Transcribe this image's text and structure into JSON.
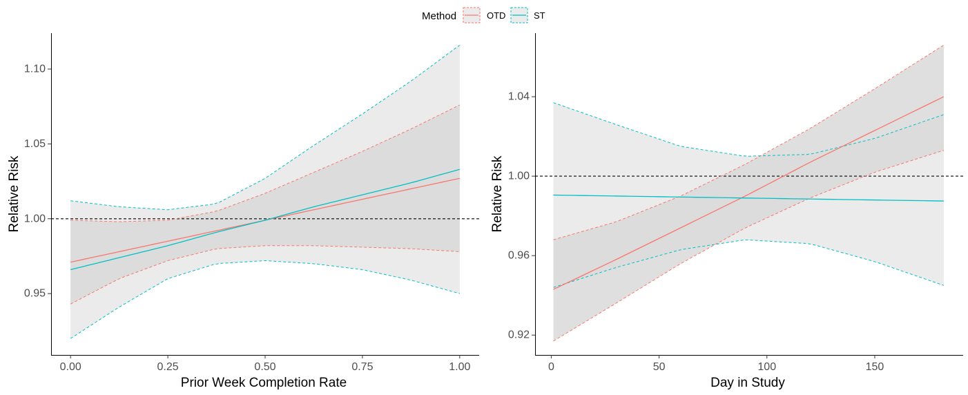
{
  "legend": {
    "title": "Method",
    "entries": [
      {
        "label": "OTD",
        "color": "#F8766D"
      },
      {
        "label": "ST",
        "color": "#00BFC4"
      }
    ],
    "placement": "top-center"
  },
  "colors": {
    "otd": "#F8766D",
    "st": "#00BFC4",
    "outer_ribbon": "#EBEBEB",
    "overlap_ribbon": "#D9D9D9",
    "axis": "#000000",
    "tick_label": "#4D4D4D",
    "reference": "#000000"
  },
  "chart_data": [
    {
      "type": "line",
      "title": "",
      "xlabel": "Prior Week Completion Rate",
      "ylabel": "Relative Risk",
      "xlim": [
        -0.05,
        1.05
      ],
      "ylim": [
        0.909,
        1.124
      ],
      "xticks": [
        0,
        0.25,
        0.5,
        0.75,
        1
      ],
      "xtick_labels": [
        "0.00",
        "0.25",
        "0.50",
        "0.75",
        "1.00"
      ],
      "yticks": [
        0.95,
        1.0,
        1.05,
        1.1
      ],
      "ytick_labels": [
        "0.95",
        "1.00",
        "1.05",
        "1.10"
      ],
      "reference_line": 1.0,
      "grid": false,
      "series": [
        {
          "name": "OTD",
          "x": [
            0,
            0.125,
            0.25,
            0.375,
            0.5,
            0.625,
            0.75,
            0.875,
            1
          ],
          "estimate": [
            0.971,
            0.978,
            0.985,
            0.992,
            0.999,
            1.006,
            1.013,
            1.02,
            1.027
          ],
          "lower": [
            0.943,
            0.96,
            0.972,
            0.98,
            0.982,
            0.982,
            0.981,
            0.98,
            0.978
          ],
          "upper": [
            0.999,
            0.998,
            0.999,
            1.005,
            1.017,
            1.031,
            1.045,
            1.06,
            1.076
          ]
        },
        {
          "name": "ST",
          "x": [
            0,
            0.125,
            0.25,
            0.375,
            0.5,
            0.625,
            0.75,
            0.875,
            1
          ],
          "estimate": [
            0.966,
            0.974,
            0.982,
            0.991,
            0.999,
            1.008,
            1.016,
            1.024,
            1.033
          ],
          "lower": [
            0.92,
            0.941,
            0.96,
            0.97,
            0.972,
            0.97,
            0.966,
            0.959,
            0.95
          ],
          "upper": [
            1.012,
            1.008,
            1.006,
            1.01,
            1.027,
            1.049,
            1.07,
            1.092,
            1.116
          ]
        }
      ]
    },
    {
      "type": "line",
      "title": "",
      "xlabel": "Day in Study",
      "ylabel": "Relative Risk",
      "xlim": [
        -7.5,
        191
      ],
      "ylim": [
        0.91,
        1.072
      ],
      "xticks": [
        0,
        50,
        100,
        150
      ],
      "xtick_labels": [
        "0",
        "50",
        "100",
        "150"
      ],
      "yticks": [
        0.92,
        0.96,
        1.0,
        1.04
      ],
      "ytick_labels": [
        "0.92",
        "0.96",
        "1.00",
        "1.04"
      ],
      "reference_line": 1.0,
      "grid": false,
      "series": [
        {
          "name": "OTD",
          "x": [
            1,
            30,
            60,
            90,
            120,
            150,
            182
          ],
          "estimate": [
            0.943,
            0.958,
            0.974,
            0.99,
            1.007,
            1.023,
            1.04
          ],
          "lower": [
            0.917,
            0.936,
            0.956,
            0.974,
            0.989,
            1.002,
            1.013
          ],
          "upper": [
            0.968,
            0.977,
            0.99,
            1.006,
            1.024,
            1.044,
            1.066
          ]
        },
        {
          "name": "ST",
          "x": [
            1,
            30,
            60,
            90,
            120,
            150,
            182
          ],
          "estimate": [
            0.9905,
            0.99,
            0.9895,
            0.989,
            0.9885,
            0.988,
            0.9875
          ],
          "lower": [
            0.944,
            0.954,
            0.963,
            0.968,
            0.966,
            0.957,
            0.945
          ],
          "upper": [
            1.037,
            1.026,
            1.015,
            1.01,
            1.011,
            1.019,
            1.031
          ]
        }
      ]
    }
  ]
}
